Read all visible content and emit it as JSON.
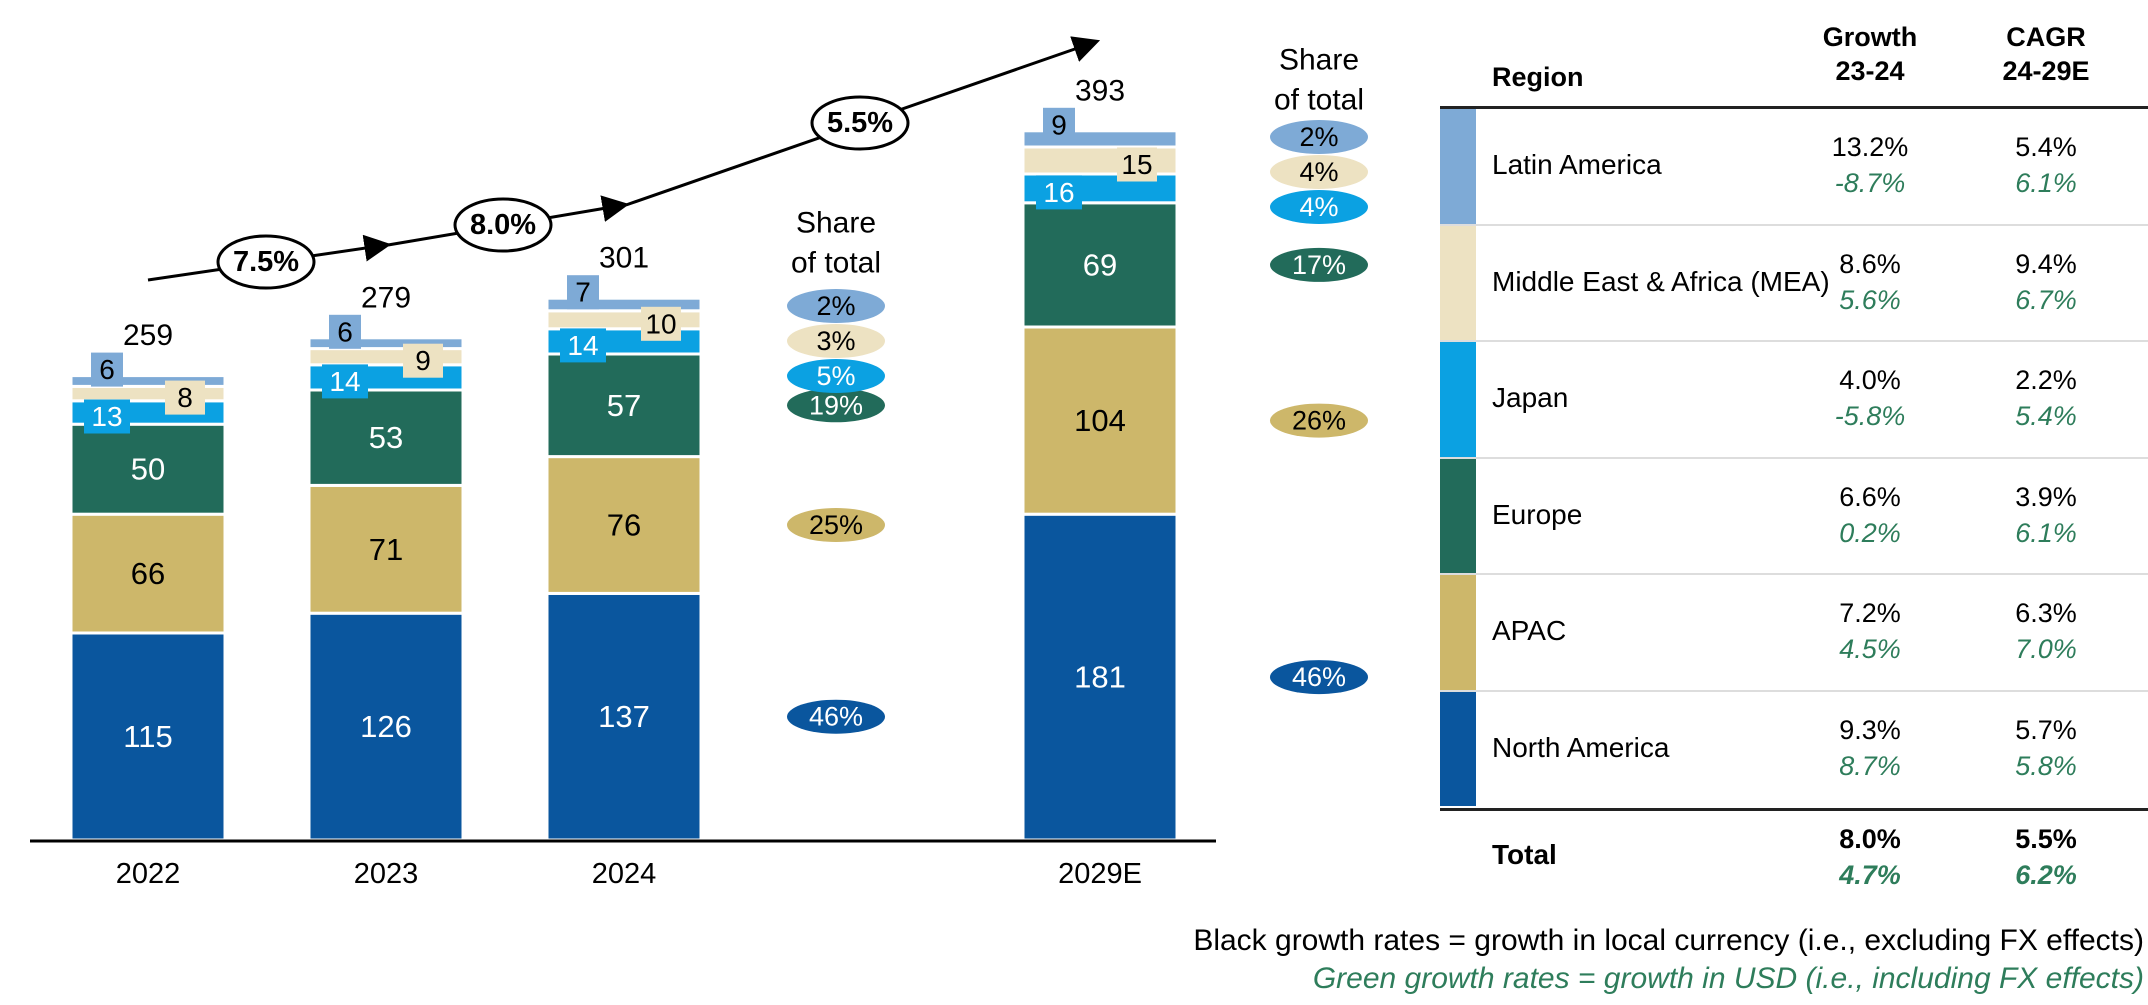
{
  "chart_data": {
    "type": "bar",
    "stacked": true,
    "categories": [
      "2022",
      "2023",
      "2024",
      "2029E"
    ],
    "series": [
      {
        "name": "North America",
        "color": "#0a569e",
        "values": [
          115,
          126,
          137,
          181
        ]
      },
      {
        "name": "APAC",
        "color": "#cdb76a",
        "values": [
          66,
          71,
          76,
          104
        ]
      },
      {
        "name": "Europe",
        "color": "#226b5a",
        "values": [
          50,
          53,
          57,
          69
        ]
      },
      {
        "name": "Japan",
        "color": "#0ba1e2",
        "values": [
          13,
          14,
          14,
          16
        ]
      },
      {
        "name": "Middle East & Africa (MEA)",
        "color": "#ede2c2",
        "values": [
          8,
          9,
          10,
          15
        ]
      },
      {
        "name": "Latin America",
        "color": "#7eaad6",
        "values": [
          6,
          6,
          7,
          9
        ]
      }
    ],
    "totals": [
      "259",
      "279",
      "301",
      "393"
    ],
    "growth_labels": [
      "7.5%",
      "8.0%",
      "5.5%"
    ],
    "share_title": [
      "Share",
      "of total"
    ],
    "share_2024": [
      "46%",
      "25%",
      "19%",
      "5%",
      "3%",
      "2%"
    ],
    "share_2029E": [
      "46%",
      "26%",
      "17%",
      "4%",
      "4%",
      "2%"
    ]
  },
  "table": {
    "headers": {
      "region": "Region",
      "growth": [
        "Growth",
        "23-24"
      ],
      "cagr": [
        "CAGR",
        "24-29E"
      ]
    },
    "rows": [
      {
        "region": "Latin America",
        "color": "#7eaad6",
        "growth_local": "13.2%",
        "growth_usd": "-8.7%",
        "cagr_local": "5.4%",
        "cagr_usd": "6.1%"
      },
      {
        "region": "Middle East & Africa (MEA)",
        "color": "#ede2c2",
        "growth_local": "8.6%",
        "growth_usd": "5.6%",
        "cagr_local": "9.4%",
        "cagr_usd": "6.7%"
      },
      {
        "region": "Japan",
        "color": "#0ba1e2",
        "growth_local": "4.0%",
        "growth_usd": "-5.8%",
        "cagr_local": "2.2%",
        "cagr_usd": "5.4%"
      },
      {
        "region": "Europe",
        "color": "#226b5a",
        "growth_local": "6.6%",
        "growth_usd": "0.2%",
        "cagr_local": "3.9%",
        "cagr_usd": "6.1%"
      },
      {
        "region": "APAC",
        "color": "#cdb76a",
        "growth_local": "7.2%",
        "growth_usd": "4.5%",
        "cagr_local": "6.3%",
        "cagr_usd": "7.0%"
      },
      {
        "region": "North America",
        "color": "#0a569e",
        "growth_local": "9.3%",
        "growth_usd": "8.7%",
        "cagr_local": "5.7%",
        "cagr_usd": "5.8%"
      }
    ],
    "total": {
      "label": "Total",
      "growth_local": "8.0%",
      "growth_usd": "4.7%",
      "cagr_local": "5.5%",
      "cagr_usd": "6.2%"
    }
  },
  "notes": {
    "black": "Black growth rates = growth in local currency (i.e., excluding FX effects)",
    "green": "Green growth rates = growth in USD (i.e., including FX effects)"
  }
}
